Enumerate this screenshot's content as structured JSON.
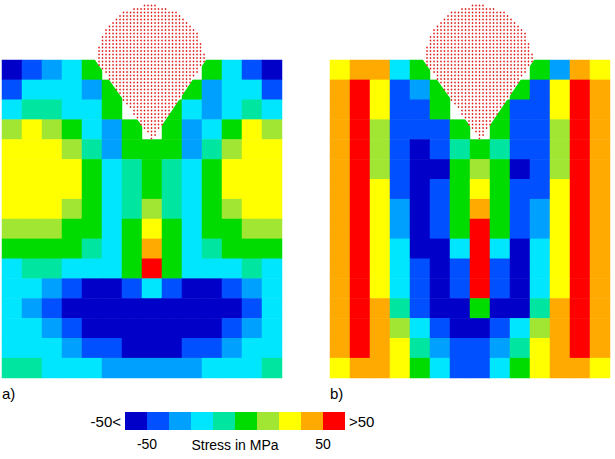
{
  "chart_data": [
    {
      "type": "heatmap",
      "title": "a)",
      "cells": [
        [
          -55,
          -45,
          -35,
          -20,
          0,
          null,
          null,
          null,
          null,
          null,
          0,
          -20,
          -40,
          -55
        ],
        [
          -40,
          -25,
          -15,
          -20,
          -30,
          0,
          null,
          null,
          null,
          0,
          -30,
          -20,
          -20,
          -40
        ],
        [
          -20,
          -10,
          -5,
          -15,
          -25,
          0,
          null,
          null,
          0,
          -25,
          -30,
          -15,
          -10,
          -20
        ],
        [
          15,
          25,
          20,
          5,
          -20,
          -30,
          0,
          null,
          0,
          -30,
          -15,
          10,
          25,
          15
        ],
        [
          25,
          35,
          30,
          15,
          -10,
          -30,
          0,
          5,
          0,
          -30,
          -10,
          20,
          35,
          25
        ],
        [
          30,
          35,
          35,
          25,
          0,
          -25,
          -10,
          10,
          -10,
          -25,
          5,
          25,
          35,
          30
        ],
        [
          30,
          35,
          35,
          25,
          5,
          -20,
          -10,
          10,
          -10,
          -20,
          5,
          25,
          35,
          30
        ],
        [
          25,
          30,
          30,
          20,
          5,
          -15,
          -5,
          20,
          -5,
          -15,
          5,
          20,
          30,
          25
        ],
        [
          15,
          20,
          20,
          10,
          0,
          -15,
          0,
          30,
          0,
          -15,
          0,
          10,
          20,
          15
        ],
        [
          0,
          5,
          5,
          0,
          -10,
          -15,
          5,
          45,
          5,
          -15,
          -10,
          0,
          5,
          0
        ],
        [
          -15,
          -10,
          -10,
          -15,
          -20,
          -20,
          10,
          60,
          10,
          -20,
          -20,
          -15,
          -10,
          -15
        ],
        [
          -25,
          -25,
          -30,
          -40,
          -55,
          -60,
          -50,
          -20,
          -50,
          -60,
          -55,
          -40,
          -30,
          -25
        ],
        [
          -25,
          -30,
          -40,
          -55,
          -70,
          -75,
          -75,
          -70,
          -75,
          -75,
          -70,
          -55,
          -40,
          -25
        ],
        [
          -20,
          -25,
          -35,
          -50,
          -65,
          -70,
          -75,
          -75,
          -75,
          -70,
          -65,
          -50,
          -35,
          -20
        ],
        [
          -15,
          -20,
          -25,
          -35,
          -45,
          -50,
          -55,
          -55,
          -55,
          -50,
          -45,
          -35,
          -25,
          -15
        ],
        [
          -10,
          -10,
          -15,
          -20,
          -25,
          -30,
          -30,
          -30,
          -30,
          -30,
          -25,
          -20,
          -15,
          -10
        ]
      ]
    },
    {
      "type": "heatmap",
      "title": "b)",
      "cells": [
        [
          35,
          50,
          40,
          -20,
          0,
          null,
          null,
          null,
          null,
          null,
          0,
          -30,
          50,
          35
        ],
        [
          40,
          55,
          30,
          -40,
          -30,
          0,
          null,
          null,
          null,
          0,
          -40,
          30,
          55,
          40
        ],
        [
          40,
          55,
          25,
          -45,
          -45,
          0,
          null,
          null,
          0,
          -45,
          -40,
          25,
          55,
          40
        ],
        [
          45,
          55,
          20,
          -45,
          -50,
          -40,
          0,
          null,
          0,
          -45,
          -45,
          20,
          55,
          45
        ],
        [
          45,
          60,
          20,
          -45,
          -55,
          -50,
          -10,
          10,
          -10,
          -50,
          -45,
          20,
          60,
          45
        ],
        [
          45,
          60,
          20,
          -40,
          -55,
          -55,
          0,
          20,
          0,
          -55,
          -40,
          20,
          60,
          45
        ],
        [
          50,
          60,
          25,
          -40,
          -55,
          -50,
          5,
          30,
          5,
          -50,
          -40,
          25,
          60,
          50
        ],
        [
          50,
          60,
          25,
          -35,
          -55,
          -50,
          10,
          40,
          10,
          -50,
          -35,
          25,
          60,
          50
        ],
        [
          50,
          60,
          30,
          -30,
          -55,
          -50,
          0,
          55,
          0,
          -50,
          -30,
          30,
          60,
          50
        ],
        [
          50,
          60,
          30,
          -25,
          -55,
          -55,
          -20,
          60,
          -20,
          -55,
          -25,
          30,
          60,
          50
        ],
        [
          50,
          60,
          30,
          -20,
          -50,
          -55,
          -40,
          65,
          -40,
          -55,
          -20,
          30,
          60,
          50
        ],
        [
          50,
          60,
          35,
          -15,
          -50,
          -55,
          -50,
          60,
          -50,
          -55,
          -15,
          35,
          60,
          50
        ],
        [
          50,
          60,
          40,
          -5,
          -40,
          -55,
          -55,
          0,
          -55,
          -55,
          -5,
          40,
          60,
          50
        ],
        [
          45,
          60,
          50,
          20,
          -20,
          -45,
          -55,
          -55,
          -45,
          -20,
          20,
          50,
          60,
          45
        ],
        [
          40,
          55,
          50,
          25,
          -10,
          -35,
          -50,
          -50,
          -35,
          -10,
          25,
          50,
          55,
          40
        ],
        [
          35,
          50,
          50,
          30,
          0,
          -25,
          -40,
          -40,
          -25,
          0,
          30,
          50,
          50,
          35
        ]
      ]
    }
  ],
  "color_bar": {
    "title": "Stress in MPa",
    "range": [
      -50,
      50
    ],
    "ticks": [
      -50,
      50
    ],
    "under_label": "-50<",
    "over_label": ">50",
    "colors": [
      "#0000c8",
      "#0050ff",
      "#00a0ff",
      "#00e6ff",
      "#00e6a0",
      "#00dc00",
      "#a0e632",
      "#ffff00",
      "#ffaa00",
      "#ff0000"
    ]
  }
}
